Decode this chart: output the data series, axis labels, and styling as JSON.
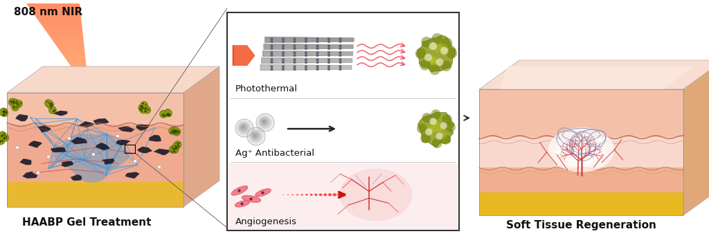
{
  "bg_color": "#ffffff",
  "title_left": "HAABP Gel Treatment",
  "title_right": "Soft Tissue Regeneration",
  "label_nir": "808 nm NIR",
  "label_photothermal": "Photothermal",
  "label_ag": "Ag⁺ Antibacterial",
  "label_angio": "Angiogenesis",
  "fig_width": 10.24,
  "fig_height": 3.41,
  "dpi": 100
}
